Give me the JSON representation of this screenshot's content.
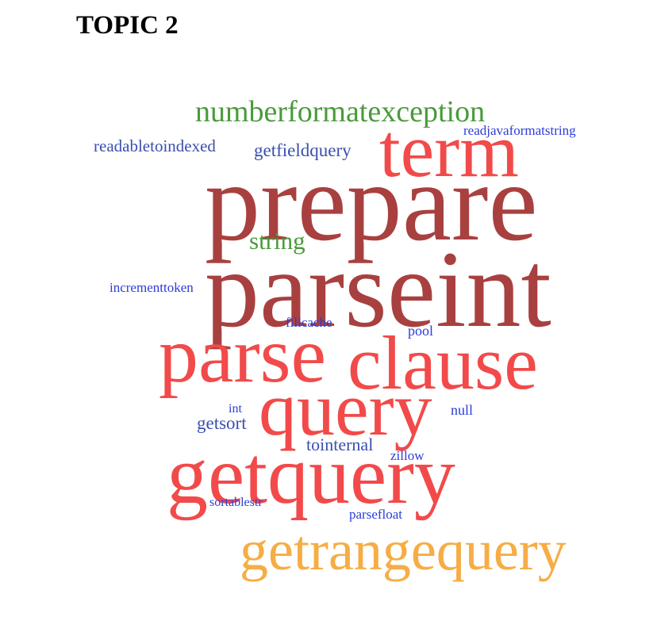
{
  "title": "TOPIC 2",
  "palette": {
    "dark_red": "#a94040",
    "red": "#f24a4a",
    "orange": "#f6ad45",
    "green": "#4a9a3a",
    "blue": "#3a4fb0",
    "bright_blue": "#2b3dd8"
  },
  "words": {
    "prepare": {
      "text": "prepare",
      "color": "#a94040"
    },
    "parseint": {
      "text": "parseint",
      "color": "#a94040"
    },
    "term": {
      "text": "term",
      "color": "#f24a4a"
    },
    "parse": {
      "text": "parse",
      "color": "#f24a4a"
    },
    "clause": {
      "text": "clause",
      "color": "#f24a4a"
    },
    "query": {
      "text": "query",
      "color": "#f24a4a"
    },
    "getquery": {
      "text": "getquery",
      "color": "#f24a4a"
    },
    "getrangequery": {
      "text": "getrangequery",
      "color": "#f6ad45"
    },
    "numberformatexception": {
      "text": "numberformatexception",
      "color": "#4a9a3a"
    },
    "string": {
      "text": "string",
      "color": "#4a9a3a"
    },
    "readabletoindexed": {
      "text": "readabletoindexed",
      "color": "#3a4fb0"
    },
    "getfieldquery": {
      "text": "getfieldquery",
      "color": "#3a4fb0"
    },
    "readjavaformatstring": {
      "text": "readjavaformatstring",
      "color": "#2b3dd8"
    },
    "incrementtoken": {
      "text": "incrementtoken",
      "color": "#2b3dd8"
    },
    "fillcache": {
      "text": "fillcache",
      "color": "#2b3dd8"
    },
    "pool": {
      "text": "pool",
      "color": "#2b3dd8"
    },
    "int": {
      "text": "int",
      "color": "#2b3dd8"
    },
    "null": {
      "text": "null",
      "color": "#2b3dd8"
    },
    "getsort": {
      "text": "getsort",
      "color": "#3a4fb0"
    },
    "tointernal": {
      "text": "tointernal",
      "color": "#3a4fb0"
    },
    "zillow": {
      "text": "zillow",
      "color": "#2b3dd8"
    },
    "sortablestr": {
      "text": "sortablestr",
      "color": "#2b3dd8"
    },
    "parsefloat": {
      "text": "parsefloat",
      "color": "#2b3dd8"
    }
  }
}
